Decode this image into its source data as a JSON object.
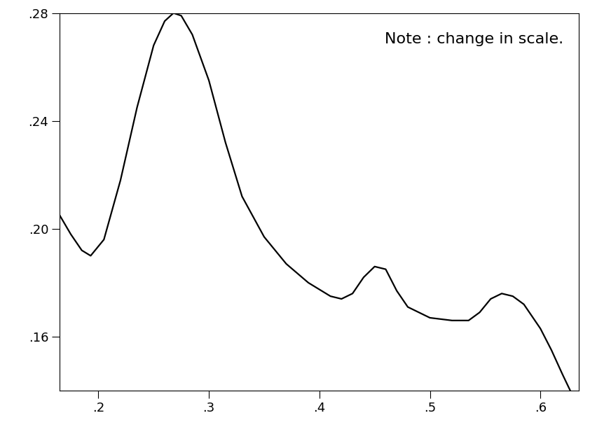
{
  "chart_data": {
    "type": "line",
    "annotations": [
      "Note : change in scale."
    ],
    "x": [
      0.165,
      0.175,
      0.185,
      0.193,
      0.205,
      0.22,
      0.235,
      0.25,
      0.26,
      0.268,
      0.275,
      0.285,
      0.3,
      0.315,
      0.33,
      0.35,
      0.37,
      0.39,
      0.41,
      0.42,
      0.43,
      0.44,
      0.45,
      0.46,
      0.47,
      0.48,
      0.5,
      0.52,
      0.535,
      0.545,
      0.555,
      0.565,
      0.575,
      0.585,
      0.6,
      0.61,
      0.62,
      0.627
    ],
    "values": [
      0.205,
      0.198,
      0.192,
      0.19,
      0.196,
      0.218,
      0.245,
      0.268,
      0.277,
      0.28,
      0.279,
      0.272,
      0.255,
      0.232,
      0.212,
      0.197,
      0.187,
      0.18,
      0.175,
      0.174,
      0.176,
      0.182,
      0.186,
      0.185,
      0.177,
      0.171,
      0.167,
      0.166,
      0.166,
      0.169,
      0.174,
      0.176,
      0.175,
      0.172,
      0.163,
      0.155,
      0.146,
      0.14
    ],
    "color": "#000000",
    "xlim": [
      0.165,
      0.635
    ],
    "ylim": [
      0.14,
      0.28
    ],
    "xticks": [
      {
        "value": 0.2,
        "label": ".2"
      },
      {
        "value": 0.3,
        "label": ".3"
      },
      {
        "value": 0.4,
        "label": ".4"
      },
      {
        "value": 0.5,
        "label": ".5"
      },
      {
        "value": 0.6,
        "label": ".6"
      }
    ],
    "yticks": [
      {
        "value": 0.16,
        "label": ".16"
      },
      {
        "value": 0.2,
        "label": ".20"
      },
      {
        "value": 0.24,
        "label": ".24"
      },
      {
        "value": 0.28,
        "label": ".28"
      }
    ],
    "grid": false
  }
}
